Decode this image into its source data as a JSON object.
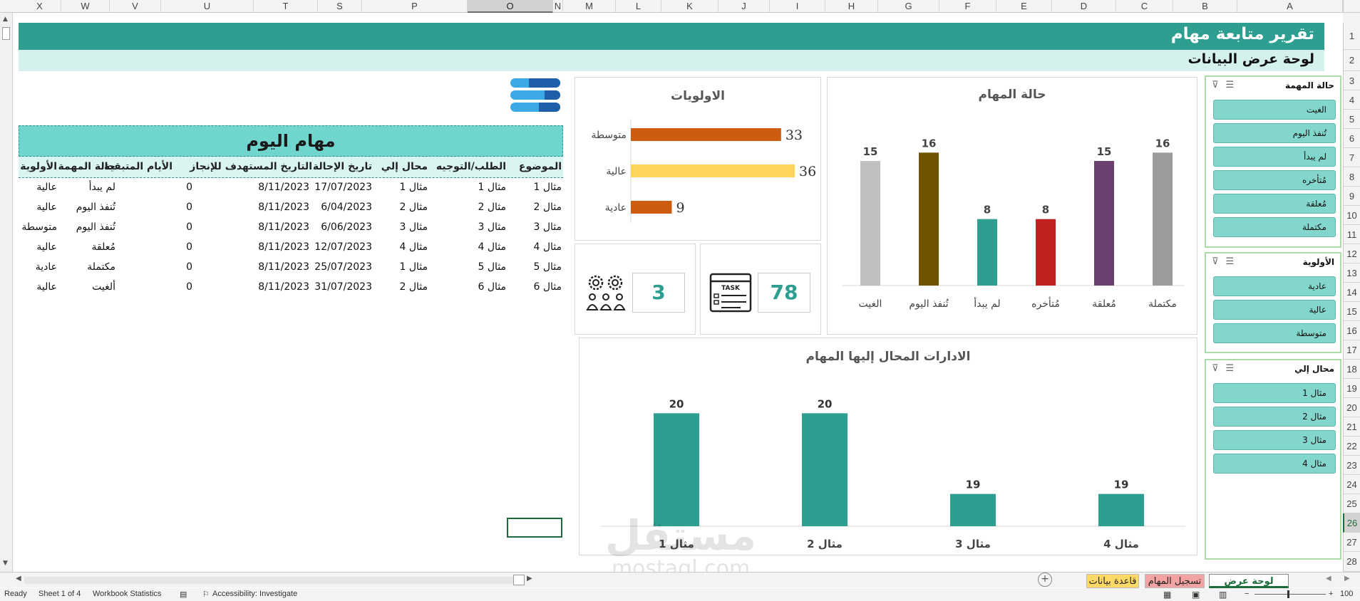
{
  "columns": [
    {
      "label": "X",
      "sel": false
    },
    {
      "label": "W",
      "sel": false
    },
    {
      "label": "V",
      "sel": false
    },
    {
      "label": "U",
      "sel": false
    },
    {
      "label": "T",
      "sel": false
    },
    {
      "label": "S",
      "sel": false
    },
    {
      "label": "P",
      "sel": false
    },
    {
      "label": "O",
      "sel": true
    },
    {
      "label": "N",
      "sel": false
    },
    {
      "label": "M",
      "sel": false
    },
    {
      "label": "L",
      "sel": false
    },
    {
      "label": "K",
      "sel": false
    },
    {
      "label": "J",
      "sel": false
    },
    {
      "label": "I",
      "sel": false
    },
    {
      "label": "H",
      "sel": false
    },
    {
      "label": "G",
      "sel": false
    },
    {
      "label": "F",
      "sel": false
    },
    {
      "label": "E",
      "sel": false
    },
    {
      "label": "D",
      "sel": false
    },
    {
      "label": "C",
      "sel": false
    },
    {
      "label": "B",
      "sel": false
    },
    {
      "label": "A",
      "sel": false
    }
  ],
  "rows": [
    "1",
    "2",
    "3",
    "4",
    "5",
    "6",
    "7",
    "8",
    "9",
    "10",
    "11",
    "12",
    "13",
    "14",
    "15",
    "16",
    "17",
    "18",
    "19",
    "20",
    "21",
    "22",
    "23",
    "24",
    "25",
    "26",
    "27",
    "28"
  ],
  "selected_row": "26",
  "header": {
    "title": "تقرير متابعة مهام",
    "subtitle": "لوحة عرض البيانات"
  },
  "slicers": {
    "status": {
      "title": "حالة المهمة",
      "items": [
        "الغيت",
        "تُنفذ اليوم",
        "لم يبدأ",
        "مُتأخره",
        "مُعلقة",
        "مكتملة"
      ]
    },
    "priority": {
      "title": "الأولوية",
      "items": [
        "عادية",
        "عالية",
        "متوسطة"
      ]
    },
    "assigned": {
      "title": "محال إلي",
      "items": [
        "مثال 1",
        "مثال 2",
        "مثال 3",
        "مثال 4"
      ]
    }
  },
  "kpi": {
    "tasks_total": "78",
    "teams_total": "3",
    "task_icon_label": "TASK"
  },
  "table": {
    "title": "مهام اليوم",
    "headers": [
      "الموضوع",
      "الطلب/التوجيه",
      "محال إلي",
      "تاريخ الإحالة",
      "التاريخ المستهدف للإنجاز",
      "الأيام المتبقية",
      "حالة المهمة",
      "الأولوية"
    ],
    "rows": [
      [
        "مثال 1",
        "مثال 1",
        "مثال 1",
        "17/07/2023",
        "8/11/2023",
        "0",
        "لم يبدأ",
        "عالية"
      ],
      [
        "مثال 2",
        "مثال 2",
        "مثال 2",
        "6/04/2023",
        "8/11/2023",
        "0",
        "تُنفذ اليوم",
        "عالية"
      ],
      [
        "مثال 3",
        "مثال 3",
        "مثال 3",
        "6/06/2023",
        "8/11/2023",
        "0",
        "تُنفذ اليوم",
        "متوسطة"
      ],
      [
        "مثال 4",
        "مثال 4",
        "مثال 4",
        "12/07/2023",
        "8/11/2023",
        "0",
        "مُعلقة",
        "عالية"
      ],
      [
        "مثال 5",
        "مثال 5",
        "مثال 1",
        "25/07/2023",
        "8/11/2023",
        "0",
        "مكتملة",
        "عادية"
      ],
      [
        "مثال 6",
        "مثال 6",
        "مثال 2",
        "31/07/2023",
        "8/11/2023",
        "0",
        "ألغيت",
        "عالية"
      ]
    ]
  },
  "chart_data": [
    {
      "type": "bar",
      "title": "حالة المهام",
      "categories": [
        "مكتملة",
        "مُعلقة",
        "مُتأخره",
        "لم يبدأ",
        "تُنفذ اليوم",
        "الغيت"
      ],
      "values": [
        16,
        15,
        8,
        8,
        16,
        15
      ],
      "colors": [
        "#9b9b9b",
        "#6b3f6e",
        "#c02222",
        "#2e9e91",
        "#705300",
        "#bfbfbf"
      ],
      "ylim": [
        0,
        18
      ],
      "grid": false
    },
    {
      "type": "bar",
      "orientation": "horizontal",
      "title": "الاولويات",
      "categories": [
        "متوسطة",
        "عالية",
        "عادية"
      ],
      "values": [
        33,
        36,
        9
      ],
      "colors": [
        "#cc5c0f",
        "#ffd55c",
        "#cc5c0f"
      ],
      "xlim": [
        0,
        36
      ],
      "grid": false
    },
    {
      "type": "bar",
      "title": "الادارات المحال إليها المهام",
      "categories": [
        "مثال 1",
        "مثال 2",
        "مثال 3",
        "مثال 4"
      ],
      "values": [
        20,
        20,
        19,
        19
      ],
      "colors": [
        "#2e9e91"
      ],
      "ylim": [
        18.6,
        20.1
      ],
      "grid": false
    }
  ],
  "sheet_tabs": [
    {
      "label": "لوحة عرض البيانات",
      "active": true,
      "color": "#ffffff"
    },
    {
      "label": "تسجيل المهام",
      "active": false,
      "color": "#f4a3a3"
    },
    {
      "label": "قاعدة بيانات",
      "active": false,
      "color": "#ffd966"
    }
  ],
  "status": {
    "ready": "Ready",
    "sheet": "Sheet 1 of 4",
    "stats": "Workbook Statistics",
    "accessibility": "Accessibility: Investigate",
    "zoom": "100"
  },
  "watermark": {
    "text_ar": "مستقل",
    "text_en": "mostaql.com"
  },
  "theme": {
    "accent": "#2e9e91",
    "accent_light": "#d4f1ee",
    "slicer_item": "#83d6cb"
  }
}
